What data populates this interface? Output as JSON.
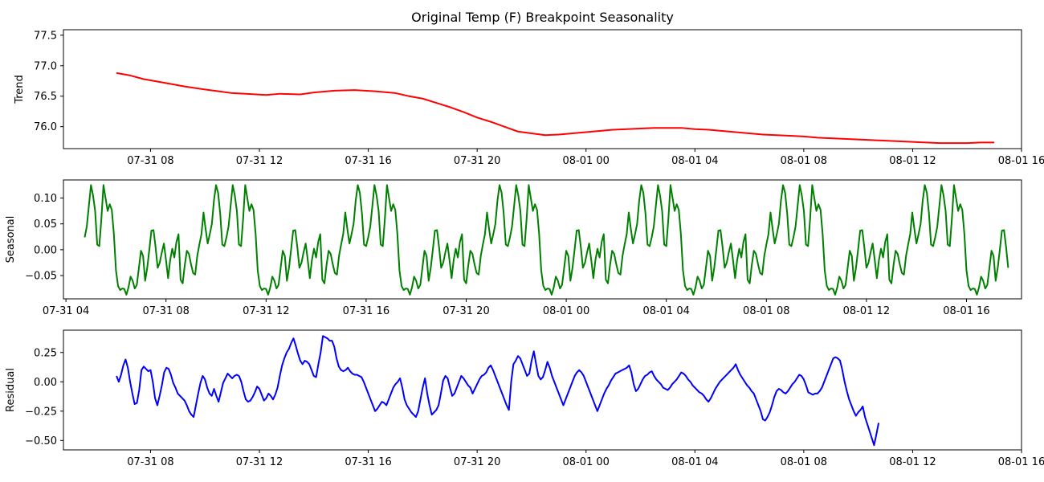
{
  "chart_data": [
    {
      "type": "line",
      "title": "Original Temp (F) Breakpoint Seasonality",
      "ylabel": "Trend",
      "xlabel": "",
      "color": "#ff0000",
      "xlim": [
        "2023-07-31 04:48",
        "2023-08-01 16:00"
      ],
      "ylim": [
        75.64,
        77.59
      ],
      "x_ticks": [
        "2023-07-31 08:00",
        "2023-07-31 12:00",
        "2023-07-31 16:00",
        "2023-07-31 20:00",
        "2023-08-01 00:00",
        "2023-08-01 04:00",
        "2023-08-01 08:00",
        "2023-08-01 12:00",
        "2023-08-01 16:00"
      ],
      "x_tick_labels": [
        "07-31 08",
        "07-31 12",
        "07-31 16",
        "07-31 20",
        "08-01 00",
        "08-01 04",
        "08-01 08",
        "08-01 12",
        "08-01 16"
      ],
      "y_ticks": [
        76.0,
        76.5,
        77.0,
        77.5
      ],
      "y_tick_labels": [
        "76.0",
        "76.5",
        "77.0",
        "77.5"
      ],
      "series": [
        {
          "x": [
            "2023-07-31 06:45",
            "2023-07-31 07:15",
            "2023-07-31 07:45",
            "2023-07-31 08:30",
            "2023-07-31 09:15",
            "2023-07-31 10:00",
            "2023-07-31 10:30",
            "2023-07-31 11:00",
            "2023-07-31 11:30",
            "2023-07-31 12:15",
            "2023-07-31 12:45",
            "2023-07-31 13:30",
            "2023-07-31 14:00",
            "2023-07-31 14:45",
            "2023-07-31 15:30",
            "2023-07-31 16:15",
            "2023-07-31 17:00",
            "2023-07-31 17:30",
            "2023-07-31 18:00",
            "2023-07-31 18:30",
            "2023-07-31 19:00",
            "2023-07-31 19:30",
            "2023-07-31 20:00",
            "2023-07-31 20:30",
            "2023-07-31 21:00",
            "2023-07-31 21:30",
            "2023-07-31 22:00",
            "2023-07-31 22:30",
            "2023-07-31 23:00",
            "2023-07-31 23:30",
            "2023-08-01 00:00",
            "2023-08-01 00:30",
            "2023-08-01 01:00",
            "2023-08-01 01:30",
            "2023-08-01 02:00",
            "2023-08-01 02:30",
            "2023-08-01 03:00",
            "2023-08-01 03:30",
            "2023-08-01 04:00",
            "2023-08-01 04:30",
            "2023-08-01 05:00",
            "2023-08-01 05:30",
            "2023-08-01 06:00",
            "2023-08-01 06:30",
            "2023-08-01 07:00",
            "2023-08-01 07:30",
            "2023-08-01 08:00",
            "2023-08-01 08:30",
            "2023-08-01 09:00",
            "2023-08-01 09:30",
            "2023-08-01 10:00",
            "2023-08-01 10:30",
            "2023-08-01 11:00",
            "2023-08-01 11:30",
            "2023-08-01 12:00",
            "2023-08-01 12:30",
            "2023-08-01 13:00",
            "2023-08-01 13:30",
            "2023-08-01 14:00",
            "2023-08-01 14:30",
            "2023-08-01 15:00"
          ],
          "values": [
            76.88,
            76.84,
            76.78,
            76.72,
            76.66,
            76.61,
            76.58,
            76.55,
            76.54,
            76.52,
            76.54,
            76.53,
            76.56,
            76.59,
            76.6,
            76.58,
            76.55,
            76.5,
            76.46,
            76.39,
            76.32,
            76.24,
            76.15,
            76.08,
            76.0,
            75.92,
            75.89,
            75.86,
            75.87,
            75.89,
            75.91,
            75.93,
            75.95,
            75.96,
            75.97,
            75.98,
            75.98,
            75.98,
            75.96,
            75.95,
            75.93,
            75.91,
            75.89,
            75.87,
            75.86,
            75.85,
            75.84,
            75.82,
            75.81,
            75.8,
            75.79,
            75.78,
            75.77,
            75.76,
            75.75,
            75.74,
            75.73,
            75.73,
            75.73,
            75.74,
            75.74
          ]
        }
      ]
    },
    {
      "type": "line",
      "title": "",
      "ylabel": "Seasonal",
      "xlabel": "",
      "color": "#008000",
      "xlim": [
        "2023-07-31 03:54",
        "2023-08-01 18:12"
      ],
      "ylim": [
        -0.095,
        0.135
      ],
      "x_ticks": [
        "2023-07-31 04:00",
        "2023-07-31 08:00",
        "2023-07-31 12:00",
        "2023-07-31 16:00",
        "2023-07-31 20:00",
        "2023-08-01 00:00",
        "2023-08-01 04:00",
        "2023-08-01 08:00",
        "2023-08-01 12:00",
        "2023-08-01 16:00"
      ],
      "x_tick_labels": [
        "07-31 04",
        "07-31 08",
        "07-31 12",
        "07-31 16",
        "07-31 20",
        "08-01 00",
        "08-01 04",
        "08-01 08",
        "08-01 12",
        "08-01 16"
      ],
      "y_ticks": [
        -0.05,
        0.0,
        0.05,
        0.1
      ],
      "y_tick_labels": [
        "−0.05",
        "0.00",
        "0.05",
        "0.10"
      ],
      "series": [
        {
          "start": "2023-07-31 04:45",
          "step_minutes": 5,
          "period_values": [
            0.024,
            0.045,
            0.085,
            0.125,
            0.105,
            0.075,
            0.01,
            0.007,
            0.06,
            0.125,
            0.1,
            0.075,
            0.088,
            0.077,
            0.03,
            -0.04,
            -0.07,
            -0.078,
            -0.075,
            -0.076,
            -0.087,
            -0.073,
            -0.052,
            -0.06,
            -0.075,
            -0.068,
            -0.035,
            -0.002,
            -0.012,
            -0.06,
            -0.035,
            0.0,
            0.037,
            0.038,
            0.005,
            -0.035,
            -0.025,
            -0.005,
            0.012,
            -0.02,
            -0.055,
            -0.02,
            0.002,
            -0.015,
            0.015,
            0.03,
            -0.058,
            -0.065,
            -0.03,
            -0.002,
            -0.008,
            -0.028,
            -0.045,
            -0.048,
            -0.012,
            0.01,
            0.03,
            0.072,
            0.04,
            0.012,
            0.03,
            0.05,
            0.095,
            0.125,
            0.11,
            0.07,
            0.01,
            0.007
          ]
        }
      ]
    },
    {
      "type": "line",
      "title": "",
      "ylabel": "Residual",
      "xlabel": "",
      "color": "#0000ff",
      "xlim": [
        "2023-07-31 04:48",
        "2023-08-01 16:00"
      ],
      "ylim": [
        -0.58,
        0.44
      ],
      "x_ticks": [
        "2023-07-31 08:00",
        "2023-07-31 12:00",
        "2023-07-31 16:00",
        "2023-07-31 20:00",
        "2023-08-01 00:00",
        "2023-08-01 04:00",
        "2023-08-01 08:00",
        "2023-08-01 12:00",
        "2023-08-01 16:00"
      ],
      "x_tick_labels": [
        "07-31 08",
        "07-31 12",
        "07-31 16",
        "07-31 20",
        "08-01 00",
        "08-01 04",
        "08-01 08",
        "08-01 12",
        "08-01 16"
      ],
      "y_ticks": [
        -0.5,
        -0.25,
        0.0,
        0.25
      ],
      "y_tick_labels": [
        "−0.50",
        "−0.25",
        "0.00",
        "0.25"
      ],
      "series": [
        {
          "start": "2023-07-31 06:45",
          "step_minutes": 5,
          "values": [
            0.05,
            0.0,
            0.06,
            0.14,
            0.19,
            0.12,
            0.0,
            -0.1,
            -0.19,
            -0.18,
            -0.07,
            0.1,
            0.13,
            0.11,
            0.09,
            0.1,
            0.0,
            -0.14,
            -0.2,
            -0.12,
            -0.03,
            0.08,
            0.12,
            0.11,
            0.06,
            -0.01,
            -0.05,
            -0.1,
            -0.12,
            -0.14,
            -0.16,
            -0.2,
            -0.25,
            -0.28,
            -0.3,
            -0.2,
            -0.1,
            -0.01,
            0.05,
            0.02,
            -0.05,
            -0.1,
            -0.12,
            -0.06,
            -0.12,
            -0.17,
            -0.09,
            -0.01,
            0.03,
            0.07,
            0.05,
            0.03,
            0.05,
            0.06,
            0.05,
            0.0,
            -0.08,
            -0.15,
            -0.17,
            -0.16,
            -0.13,
            -0.09,
            -0.04,
            -0.06,
            -0.11,
            -0.16,
            -0.14,
            -0.1,
            -0.12,
            -0.15,
            -0.11,
            -0.05,
            0.05,
            0.14,
            0.2,
            0.25,
            0.28,
            0.33,
            0.37,
            0.31,
            0.24,
            0.18,
            0.15,
            0.18,
            0.17,
            0.15,
            0.1,
            0.05,
            0.04,
            0.15,
            0.25,
            0.39,
            0.38,
            0.37,
            0.35,
            0.35,
            0.3,
            0.2,
            0.13,
            0.1,
            0.09,
            0.1,
            0.12,
            0.09,
            0.07,
            0.06,
            0.06,
            0.05,
            0.04,
            0.0,
            -0.05,
            -0.1,
            -0.15,
            -0.2,
            -0.25,
            -0.23,
            -0.2,
            -0.17,
            -0.18,
            -0.2,
            -0.15,
            -0.1,
            -0.05,
            -0.02,
            0.0,
            0.03,
            -0.05,
            -0.15,
            -0.2,
            -0.23,
            -0.26,
            -0.28,
            -0.3,
            -0.25,
            -0.15,
            -0.05,
            0.03,
            -0.1,
            -0.2,
            -0.28,
            -0.26,
            -0.24,
            -0.2,
            -0.1,
            0.01,
            0.05,
            0.03,
            -0.05,
            -0.12,
            -0.1,
            -0.05,
            0.0,
            0.05,
            0.03,
            0.0,
            -0.03,
            -0.05,
            -0.1,
            -0.06,
            -0.02,
            0.02,
            0.05,
            0.06,
            0.08,
            0.12,
            0.14,
            0.1,
            0.05,
            0.0,
            -0.05,
            -0.1,
            -0.15,
            -0.2,
            -0.24,
            0.0,
            0.15,
            0.18,
            0.22,
            0.2,
            0.15,
            0.1,
            0.05,
            0.07,
            0.18,
            0.26,
            0.15,
            0.05,
            0.02,
            0.04,
            0.1,
            0.17,
            0.12,
            0.05,
            0.0,
            -0.05,
            -0.1,
            -0.15,
            -0.2,
            -0.15,
            -0.1,
            -0.05,
            0.0,
            0.05,
            0.08,
            0.1,
            0.08,
            0.05,
            0.0,
            -0.05,
            -0.1,
            -0.15,
            -0.2,
            -0.25,
            -0.2,
            -0.15,
            -0.1,
            -0.06,
            -0.03,
            0.01,
            0.04,
            0.07,
            0.08,
            0.09,
            0.1,
            0.11,
            0.12,
            0.14,
            0.08,
            -0.02,
            -0.08,
            -0.06,
            -0.02,
            0.02,
            0.05,
            0.06,
            0.08,
            0.09,
            0.05,
            0.02,
            0.0,
            -0.02,
            -0.05,
            -0.06,
            -0.07,
            -0.05,
            -0.02,
            0.0,
            0.02,
            0.05,
            0.08,
            0.07,
            0.05,
            0.02,
            0.0,
            -0.03,
            -0.05,
            -0.07,
            -0.09,
            -0.1,
            -0.12,
            -0.15,
            -0.17,
            -0.14,
            -0.1,
            -0.06,
            -0.03,
            0.0,
            0.02,
            0.04,
            0.06,
            0.08,
            0.1,
            0.12,
            0.15,
            0.1,
            0.06,
            0.03,
            0.0,
            -0.03,
            -0.05,
            -0.08,
            -0.1,
            -0.15,
            -0.2,
            -0.25,
            -0.32,
            -0.33,
            -0.3,
            -0.26,
            -0.2,
            -0.13,
            -0.08,
            -0.06,
            -0.07,
            -0.09,
            -0.1,
            -0.08,
            -0.05,
            -0.02,
            0.0,
            0.03,
            0.06,
            0.05,
            0.02,
            -0.03,
            -0.09,
            -0.1,
            -0.11,
            -0.1,
            -0.1,
            -0.08,
            -0.05,
            0.0,
            0.05,
            0.1,
            0.15,
            0.2,
            0.21,
            0.2,
            0.18,
            0.1,
            0.0,
            -0.08,
            -0.15,
            -0.2,
            -0.25,
            -0.29,
            -0.26,
            -0.24,
            -0.21,
            -0.3,
            -0.36,
            -0.42,
            -0.48,
            -0.54,
            -0.45,
            -0.35
          ]
        }
      ]
    }
  ]
}
